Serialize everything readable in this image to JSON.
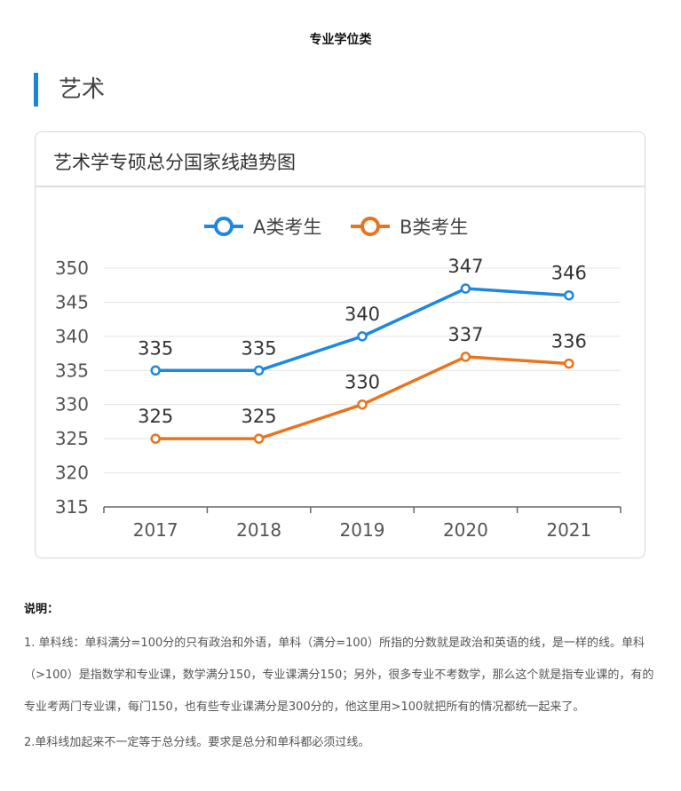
{
  "page": {
    "title": "专业学位类",
    "section_title": "艺术"
  },
  "card": {
    "title": "艺术学专硕总分国家线趋势图"
  },
  "chart_data": {
    "type": "line",
    "title": "艺术学专硕总分国家线趋势图",
    "categories": [
      "2017",
      "2018",
      "2019",
      "2020",
      "2021"
    ],
    "series": [
      {
        "name": "A类考生",
        "values": [
          335,
          335,
          340,
          347,
          346
        ],
        "color": "#1e88e0"
      },
      {
        "name": "B类考生",
        "values": [
          325,
          325,
          330,
          337,
          336
        ],
        "color": "#e8741e"
      }
    ],
    "ylim": [
      315,
      350
    ],
    "yticks": [
      315,
      320,
      325,
      330,
      335,
      340,
      345,
      350
    ],
    "grid": true,
    "legend": "top-center",
    "data_labels": true
  },
  "notes": {
    "heading": "说明：",
    "items": [
      "1. 单科线：单科满分=100分的只有政治和外语，单科（满分=100）所指的分数就是政治和英语的线，是一样的线。单科（>100）是指数学和专业课，数学满分150，专业课满分150；另外，很多专业不考数学，那么这个就是指专业课的，有的专业考两门专业课，每门150，也有些专业课满分是300分的，他这里用>100就把所有的情况都统一起来了。",
      "2.单科线加起来不一定等于总分线。要求是总分和单科都必须过线。"
    ]
  }
}
